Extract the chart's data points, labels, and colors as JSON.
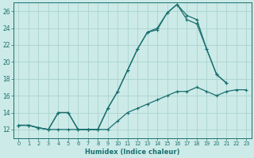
{
  "xlabel": "Humidex (Indice chaleur)",
  "background_color": "#cceae7",
  "grid_color": "#aad4d0",
  "line_color": "#1a7070",
  "xlim": [
    -0.5,
    23.5
  ],
  "ylim": [
    11.0,
    27.0
  ],
  "xticks": [
    0,
    1,
    2,
    3,
    4,
    5,
    6,
    7,
    8,
    9,
    10,
    11,
    12,
    13,
    14,
    15,
    16,
    17,
    18,
    19,
    20,
    21,
    22,
    23
  ],
  "yticks": [
    12,
    14,
    16,
    18,
    20,
    22,
    24,
    26
  ],
  "series1_x": [
    0,
    1,
    2,
    3,
    4,
    5,
    6,
    7,
    8,
    9,
    10,
    11,
    12,
    13,
    14,
    15,
    16,
    17,
    18,
    19,
    20,
    21,
    22,
    23
  ],
  "series1_y": [
    12.5,
    12.5,
    12.2,
    12.0,
    12.0,
    12.0,
    12.0,
    12.0,
    12.0,
    12.0,
    13.0,
    14.0,
    14.5,
    15.0,
    15.5,
    16.0,
    16.5,
    16.5,
    17.0,
    16.5,
    16.0,
    16.5,
    16.7,
    16.7
  ],
  "series2_x": [
    0,
    1,
    2,
    3,
    4,
    5,
    6,
    7,
    8,
    9,
    10,
    11,
    12,
    13,
    14,
    15,
    16,
    17,
    18,
    19,
    20,
    21,
    22,
    23
  ],
  "series2_y": [
    12.5,
    12.5,
    12.2,
    12.0,
    14.0,
    14.0,
    12.0,
    12.0,
    12.0,
    14.5,
    16.5,
    19.0,
    21.5,
    23.5,
    24.0,
    25.8,
    26.8,
    25.5,
    25.0,
    21.5,
    18.5,
    17.5,
    null,
    null
  ],
  "series3_x": [
    0,
    1,
    2,
    3,
    4,
    5,
    6,
    7,
    8,
    9,
    10,
    11,
    12,
    13,
    14,
    15,
    16,
    17,
    18,
    19,
    20,
    21,
    22,
    23
  ],
  "series3_y": [
    12.5,
    12.5,
    12.2,
    12.0,
    14.0,
    14.0,
    12.0,
    12.0,
    12.0,
    14.5,
    16.5,
    19.0,
    21.5,
    23.5,
    23.8,
    25.8,
    26.8,
    25.0,
    24.5,
    21.5,
    18.5,
    17.5,
    null,
    null
  ]
}
